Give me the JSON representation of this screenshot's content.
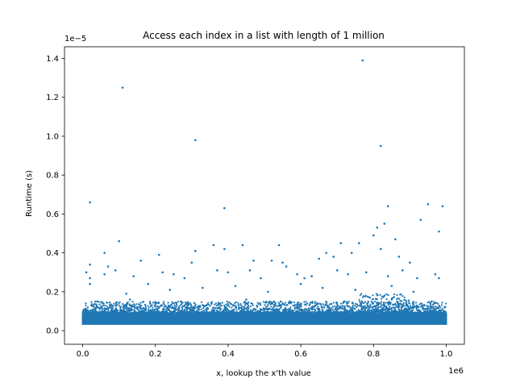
{
  "chart_data": {
    "type": "scatter",
    "title": "Access each index in a list with length of 1 million",
    "xlabel": "x, lookup the x'th value",
    "ylabel": "Runtime (s)",
    "x_offset_label": "1e6",
    "y_offset_label": "1e−5",
    "xlim": [
      -0.05,
      1.05
    ],
    "ylim": [
      -0.07,
      1.46
    ],
    "x_ticks": [
      0.0,
      0.2,
      0.4,
      0.6,
      0.8,
      1.0
    ],
    "x_tick_labels": [
      "0.0",
      "0.2",
      "0.4",
      "0.6",
      "0.8",
      "1.0"
    ],
    "y_ticks": [
      0.0,
      0.2,
      0.4,
      0.6,
      0.8,
      1.0,
      1.2,
      1.4
    ],
    "y_tick_labels": [
      "0.0",
      "0.2",
      "0.4",
      "0.6",
      "0.8",
      "1.0",
      "1.2",
      "1.4"
    ],
    "grid": false,
    "marker_color": "#1f77b4",
    "dense_band": {
      "x_range": [
        0.0,
        1.0
      ],
      "y_range": [
        0.03,
        0.09
      ],
      "description_count": 1000000
    },
    "outliers": [
      {
        "x": 0.77,
        "y": 1.39
      },
      {
        "x": 0.11,
        "y": 1.25
      },
      {
        "x": 0.31,
        "y": 0.98
      },
      {
        "x": 0.82,
        "y": 0.95
      },
      {
        "x": 0.02,
        "y": 0.66
      },
      {
        "x": 0.39,
        "y": 0.63
      },
      {
        "x": 0.84,
        "y": 0.64
      },
      {
        "x": 0.95,
        "y": 0.65
      },
      {
        "x": 0.99,
        "y": 0.64
      },
      {
        "x": 0.93,
        "y": 0.57
      },
      {
        "x": 0.98,
        "y": 0.51
      },
      {
        "x": 0.81,
        "y": 0.53
      },
      {
        "x": 0.8,
        "y": 0.49
      },
      {
        "x": 0.83,
        "y": 0.55
      },
      {
        "x": 0.86,
        "y": 0.47
      },
      {
        "x": 0.1,
        "y": 0.46
      },
      {
        "x": 0.31,
        "y": 0.41
      },
      {
        "x": 0.36,
        "y": 0.44
      },
      {
        "x": 0.44,
        "y": 0.44
      },
      {
        "x": 0.54,
        "y": 0.44
      },
      {
        "x": 0.71,
        "y": 0.45
      },
      {
        "x": 0.76,
        "y": 0.45
      },
      {
        "x": 0.06,
        "y": 0.4
      },
      {
        "x": 0.21,
        "y": 0.39
      },
      {
        "x": 0.39,
        "y": 0.42
      },
      {
        "x": 0.82,
        "y": 0.42
      },
      {
        "x": 0.02,
        "y": 0.34
      },
      {
        "x": 0.07,
        "y": 0.33
      },
      {
        "x": 0.16,
        "y": 0.36
      },
      {
        "x": 0.3,
        "y": 0.35
      },
      {
        "x": 0.47,
        "y": 0.36
      },
      {
        "x": 0.52,
        "y": 0.36
      },
      {
        "x": 0.55,
        "y": 0.35
      },
      {
        "x": 0.65,
        "y": 0.37
      },
      {
        "x": 0.67,
        "y": 0.4
      },
      {
        "x": 0.69,
        "y": 0.38
      },
      {
        "x": 0.74,
        "y": 0.4
      },
      {
        "x": 0.87,
        "y": 0.38
      },
      {
        "x": 0.9,
        "y": 0.35
      },
      {
        "x": 0.01,
        "y": 0.3
      },
      {
        "x": 0.02,
        "y": 0.27
      },
      {
        "x": 0.06,
        "y": 0.29
      },
      {
        "x": 0.09,
        "y": 0.31
      },
      {
        "x": 0.14,
        "y": 0.28
      },
      {
        "x": 0.22,
        "y": 0.3
      },
      {
        "x": 0.25,
        "y": 0.29
      },
      {
        "x": 0.28,
        "y": 0.27
      },
      {
        "x": 0.37,
        "y": 0.31
      },
      {
        "x": 0.4,
        "y": 0.3
      },
      {
        "x": 0.46,
        "y": 0.31
      },
      {
        "x": 0.49,
        "y": 0.27
      },
      {
        "x": 0.56,
        "y": 0.33
      },
      {
        "x": 0.59,
        "y": 0.29
      },
      {
        "x": 0.61,
        "y": 0.27
      },
      {
        "x": 0.63,
        "y": 0.28
      },
      {
        "x": 0.7,
        "y": 0.31
      },
      {
        "x": 0.73,
        "y": 0.29
      },
      {
        "x": 0.78,
        "y": 0.3
      },
      {
        "x": 0.84,
        "y": 0.28
      },
      {
        "x": 0.88,
        "y": 0.31
      },
      {
        "x": 0.92,
        "y": 0.27
      },
      {
        "x": 0.97,
        "y": 0.29
      },
      {
        "x": 0.98,
        "y": 0.27
      },
      {
        "x": 0.02,
        "y": 0.24
      },
      {
        "x": 0.12,
        "y": 0.19
      },
      {
        "x": 0.18,
        "y": 0.24
      },
      {
        "x": 0.24,
        "y": 0.21
      },
      {
        "x": 0.33,
        "y": 0.22
      },
      {
        "x": 0.42,
        "y": 0.23
      },
      {
        "x": 0.51,
        "y": 0.2
      },
      {
        "x": 0.6,
        "y": 0.24
      },
      {
        "x": 0.66,
        "y": 0.22
      },
      {
        "x": 0.75,
        "y": 0.21
      },
      {
        "x": 0.85,
        "y": 0.23
      },
      {
        "x": 0.91,
        "y": 0.2
      },
      {
        "x": 0.04,
        "y": 0.15
      },
      {
        "x": 0.08,
        "y": 0.13
      },
      {
        "x": 0.13,
        "y": 0.16
      },
      {
        "x": 0.2,
        "y": 0.14
      },
      {
        "x": 0.27,
        "y": 0.15
      },
      {
        "x": 0.34,
        "y": 0.13
      },
      {
        "x": 0.45,
        "y": 0.16
      },
      {
        "x": 0.53,
        "y": 0.14
      },
      {
        "x": 0.57,
        "y": 0.15
      },
      {
        "x": 0.64,
        "y": 0.13
      },
      {
        "x": 0.72,
        "y": 0.15
      },
      {
        "x": 0.79,
        "y": 0.17
      },
      {
        "x": 0.81,
        "y": 0.14
      },
      {
        "x": 0.83,
        "y": 0.18
      },
      {
        "x": 0.85,
        "y": 0.16
      },
      {
        "x": 0.89,
        "y": 0.14
      },
      {
        "x": 0.94,
        "y": 0.13
      },
      {
        "x": 0.96,
        "y": 0.15
      }
    ]
  }
}
